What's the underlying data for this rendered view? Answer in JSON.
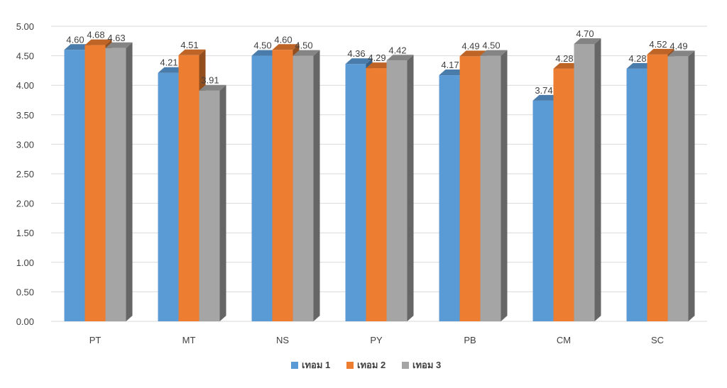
{
  "chart_data": {
    "type": "bar",
    "title": "",
    "xlabel": "",
    "ylabel": "",
    "categories": [
      "PT",
      "MT",
      "NS",
      "PY",
      "PB",
      "CM",
      "SC"
    ],
    "series": [
      {
        "name": "เทอม 1",
        "values": [
          4.6,
          4.21,
          4.5,
          4.36,
          4.17,
          3.74,
          4.28
        ]
      },
      {
        "name": "เทอม 2",
        "values": [
          4.68,
          4.51,
          4.6,
          4.29,
          4.49,
          4.28,
          4.52
        ]
      },
      {
        "name": "เทอม 3",
        "values": [
          4.63,
          3.91,
          4.5,
          4.42,
          4.5,
          4.7,
          4.49
        ]
      }
    ],
    "ylim": [
      0,
      5
    ],
    "yticks": [
      "0.00",
      "0.50",
      "1.00",
      "1.50",
      "2.00",
      "2.50",
      "3.00",
      "3.50",
      "4.00",
      "4.50",
      "5.00"
    ],
    "grid": true,
    "legend_position": "bottom",
    "colors": [
      "#5b9bd5",
      "#ed7d31",
      "#a5a5a5"
    ]
  }
}
